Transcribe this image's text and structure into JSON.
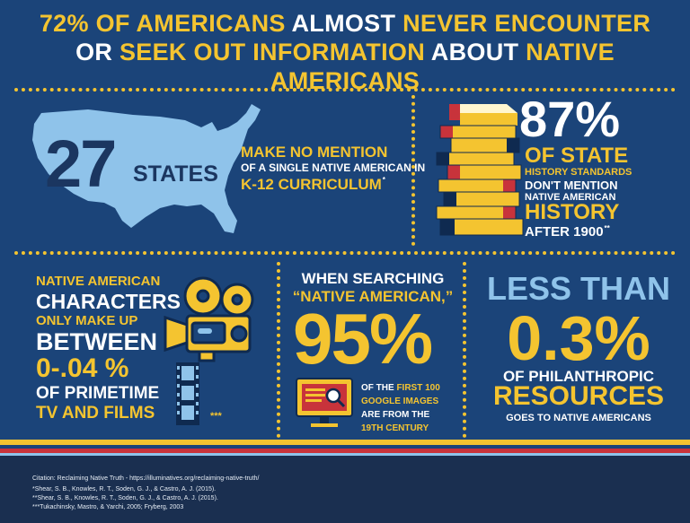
{
  "headline": {
    "line1_a": "72% OF AMERICANS ",
    "line1_b": "ALMOST ",
    "line1_c": "NEVER ENCOUNTER",
    "line2_a": "OR ",
    "line2_b": "SEEK OUT INFORMATION ",
    "line2_c": "ABOUT ",
    "line2_d": "NATIVE AMERICANS"
  },
  "states_panel": {
    "number": "27",
    "unit": "STATES",
    "line1": "MAKE NO MENTION",
    "line2": "OF A SINGLE NATIVE AMERICAN IN",
    "line3": "K-12 CURRICULUM",
    "footnote_mark": "*"
  },
  "history_panel": {
    "percent": "87%",
    "line1": "OF STATE",
    "line2": "HISTORY STANDARDS",
    "line3": "DON'T MENTION",
    "line4": "NATIVE AMERICAN",
    "line5": "HISTORY",
    "line6": "AFTER 1900",
    "footnote_mark": "**"
  },
  "characters_panel": {
    "line1": "NATIVE AMERICAN",
    "line2": "CHARACTERS",
    "line3": "ONLY MAKE UP",
    "line4": "BETWEEN",
    "line5": "0-.04 %",
    "line6": "OF PRIMETIME",
    "line7": "TV AND FILMS",
    "footnote_mark": "***"
  },
  "search_panel": {
    "line1": "WHEN SEARCHING",
    "line2": "“NATIVE AMERICAN,”",
    "percent": "95%",
    "s1a": "OF THE ",
    "s1b": "FIRST 100",
    "s2": "GOOGLE IMAGES",
    "s3": "ARE FROM THE",
    "s4": "19TH CENTURY"
  },
  "philanthropy_panel": {
    "line1": "LESS THAN",
    "percent": "0.3%",
    "line2": "OF PHILANTHROPIC",
    "line3": "RESOURCES",
    "line4": "GOES TO NATIVE AMERICANS"
  },
  "footer": {
    "citation": "Citation: Reclaiming Native Truth - https://illuminatives.org/reclaiming-native-truth/",
    "ref1": "*Shear, S. B., Knowles, R. T., Soden, G. J., & Castro, A. J. (2015).",
    "ref2": "**Shear, S. B., Knowles, R. T., Soden, G. J., & Castro, A. J. (2015).",
    "ref3": "***Tukachinsky, Mastro, & Yarchi, 2005; Fryberg, 2003"
  },
  "colors": {
    "background": "#1b4479",
    "yellow": "#f4c430",
    "light_blue": "#8fc3ea",
    "red": "#c8333b",
    "footer": "#1a2f50"
  },
  "icons": [
    "us-map-icon",
    "book-stack-icon",
    "film-camera-icon",
    "monitor-search-icon"
  ]
}
